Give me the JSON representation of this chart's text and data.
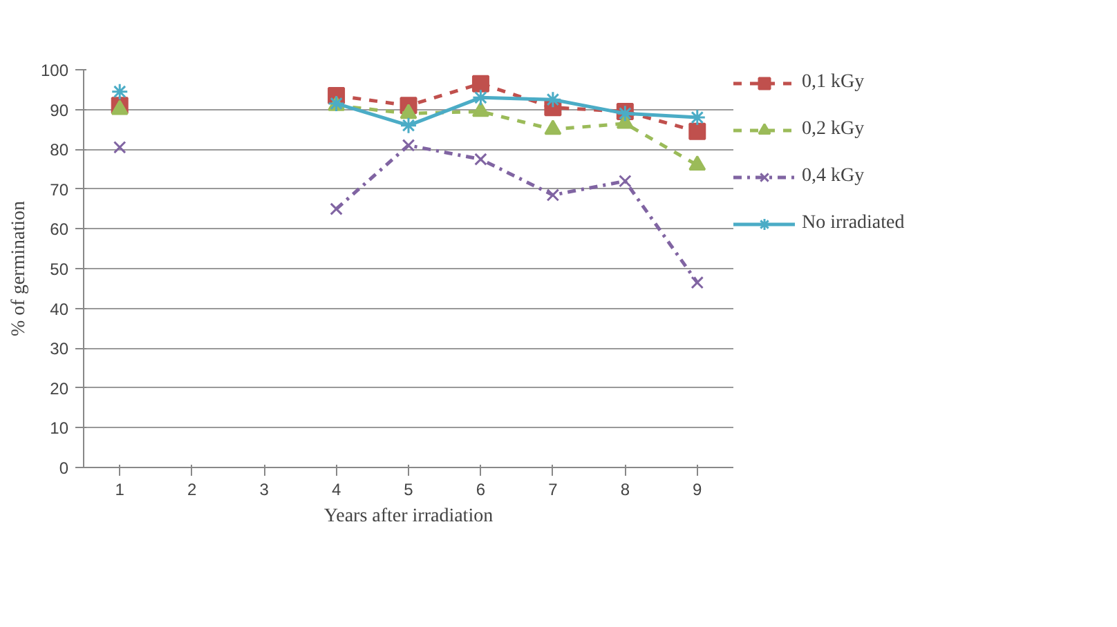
{
  "chart_data": {
    "type": "line",
    "xlabel": "Years after irradiation",
    "ylabel": "% of germination",
    "categories": [
      "1",
      "2",
      "3",
      "4",
      "5",
      "6",
      "7",
      "8",
      "9"
    ],
    "ylim": [
      0,
      100
    ],
    "yticks": [
      0,
      10,
      20,
      30,
      40,
      50,
      60,
      70,
      80,
      90,
      100
    ],
    "grid": "y",
    "legend": "right",
    "series": [
      {
        "name": "0,1 kGy",
        "color": "#c0504d",
        "marker": "square",
        "line_style": "dashed",
        "values": [
          91,
          null,
          null,
          93.5,
          91,
          96.5,
          90.5,
          89.5,
          84.5
        ]
      },
      {
        "name": "0,2 kGy",
        "color": "#9bbb59",
        "marker": "triangle",
        "line_style": "dashed",
        "values": [
          90,
          null,
          null,
          91,
          89,
          89.5,
          85,
          86.5,
          76
        ]
      },
      {
        "name": "0,4 kGy",
        "color": "#8064a2",
        "marker": "cross",
        "line_style": "dashdot",
        "values": [
          80.5,
          null,
          null,
          65,
          81,
          77.5,
          68.5,
          72,
          46.5
        ]
      },
      {
        "name": "No irradiated",
        "color": "#4bacc6",
        "marker": "cross",
        "line_style": "solid",
        "values": [
          94.5,
          null,
          null,
          91.5,
          86,
          93,
          92.5,
          89,
          88
        ]
      }
    ]
  }
}
